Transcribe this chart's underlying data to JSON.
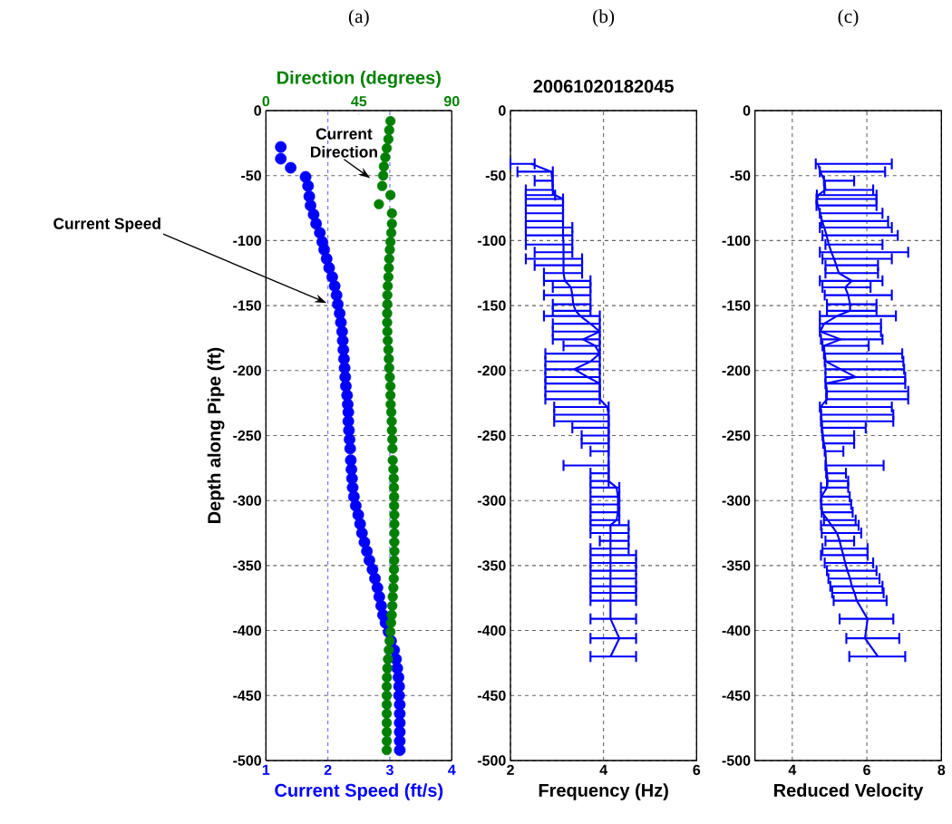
{
  "chart_data": [
    {
      "type": "scatter",
      "title": "(a)",
      "xlabel": "Current Speed (ft/s)",
      "x2label": "Direction (degrees)",
      "ylabel": "Depth along Pipe (ft)",
      "xlim": [
        1,
        4
      ],
      "xticks": [
        1,
        2,
        3,
        4
      ],
      "x2lim": [
        0,
        90
      ],
      "x2ticks": [
        0,
        45,
        90
      ],
      "ylim": [
        -500,
        0
      ],
      "yticks": [
        0,
        -50,
        -100,
        -150,
        -200,
        -250,
        -300,
        -350,
        -400,
        -450,
        -500
      ],
      "grid": true,
      "marker": "circle",
      "annotations": [
        "Current Speed",
        "Current Direction"
      ],
      "series": [
        {
          "color": "#0000ff",
          "x": [
            1.24,
            1.24,
            1.4,
            1.64,
            1.68,
            1.7,
            1.72,
            1.77,
            1.81,
            1.87,
            1.91,
            1.94,
            1.98,
            2.02,
            2.07,
            2.11,
            2.14,
            2.16,
            2.19,
            2.21,
            2.23,
            2.24,
            2.25,
            2.26,
            2.27,
            2.28,
            2.29,
            2.31,
            2.32,
            2.33,
            2.33,
            2.34,
            2.35,
            2.36,
            2.37,
            2.38,
            2.39,
            2.4,
            2.42,
            2.45,
            2.49,
            2.52,
            2.55,
            2.59,
            2.63,
            2.67,
            2.72,
            2.76,
            2.8,
            2.83,
            2.86,
            2.89,
            2.93,
            2.98,
            3.02,
            3.07,
            3.1,
            3.12,
            3.14,
            3.15,
            3.15,
            3.16,
            3.16,
            3.16,
            3.16,
            3.16,
            3.16
          ],
          "values": [
            -28,
            -37,
            -44,
            -51,
            -58,
            -66,
            -73,
            -80,
            -87,
            -94,
            -101,
            -107,
            -114,
            -121,
            -128,
            -135,
            -142,
            -149,
            -156,
            -163,
            -170,
            -177,
            -184,
            -191,
            -198,
            -205,
            -212,
            -219,
            -226,
            -232,
            -239,
            -246,
            -253,
            -260,
            -269,
            -276,
            -283,
            -290,
            -297,
            -304,
            -311,
            -318,
            -325,
            -332,
            -339,
            -346,
            -353,
            -360,
            -367,
            -374,
            -381,
            -388,
            -394,
            -401,
            -408,
            -415,
            -422,
            -429,
            -436,
            -443,
            -450,
            -457,
            -464,
            -471,
            -478,
            -485,
            -492
          ]
        },
        {
          "color": "#008000",
          "axis": "x2",
          "x": [
            60.3,
            59.7,
            59.3,
            58.5,
            57.8,
            57.1,
            56.8,
            56.3,
            60.3,
            54.7,
            61.0,
            61.0,
            60.7,
            60.3,
            60.0,
            59.7,
            59.5,
            59.3,
            59.0,
            58.8,
            58.8,
            58.7,
            58.7,
            58.8,
            59.0,
            59.3,
            59.5,
            59.7,
            60.0,
            60.3,
            60.3,
            60.4,
            60.7,
            60.9,
            61.0,
            61.2,
            61.3,
            61.4,
            61.7,
            61.9,
            62.0,
            62.1,
            62.1,
            62.2,
            62.2,
            62.2,
            62.2,
            62.2,
            62.1,
            62.0,
            61.9,
            61.7,
            61.4,
            61.2,
            60.9,
            60.6,
            60.3,
            59.9,
            59.5,
            59.1,
            58.8,
            58.6,
            58.5,
            58.5,
            58.5,
            58.5,
            58.5,
            58.5,
            58.5,
            58.5
          ],
          "values": [
            -8,
            -15,
            -22,
            -29,
            -36,
            -43,
            -50,
            -58,
            -65,
            -72,
            -79,
            -87,
            -94,
            -101,
            -107,
            -114,
            -121,
            -128,
            -135,
            -142,
            -149,
            -156,
            -163,
            -170,
            -177,
            -184,
            -191,
            -198,
            -205,
            -212,
            -219,
            -226,
            -232,
            -239,
            -246,
            -253,
            -260,
            -269,
            -276,
            -283,
            -290,
            -297,
            -304,
            -311,
            -318,
            -325,
            -332,
            -339,
            -346,
            -353,
            -360,
            -367,
            -374,
            -381,
            -388,
            -394,
            -401,
            -408,
            -415,
            -422,
            -429,
            -436,
            -443,
            -450,
            -457,
            -464,
            -471,
            -478,
            -485,
            -492
          ]
        }
      ]
    },
    {
      "type": "line",
      "title": "(b)",
      "subtitle": "20061020182045",
      "xlabel": "Frequency (Hz)",
      "xlim": [
        2,
        6
      ],
      "xticks": [
        2,
        4,
        6
      ],
      "ylim": [
        -500,
        0
      ],
      "yticks": [
        0,
        -50,
        -100,
        -150,
        -200,
        -250,
        -300,
        -350,
        -400,
        -450,
        -500
      ],
      "grid": true,
      "marker": "none",
      "series": [
        {
          "color": "#0000ff",
          "x": [
            2.45,
            2.88,
            2.9,
            2.91,
            2.96,
            3.13,
            3.13,
            3.13,
            3.13,
            3.13,
            3.13,
            3.14,
            3.14,
            3.14,
            3.14,
            3.14,
            3.17,
            3.3,
            3.33,
            3.35,
            3.4,
            3.5,
            3.72,
            3.92,
            3.56,
            3.82,
            3.92,
            3.72,
            3.37,
            3.66,
            3.92,
            3.92,
            3.92,
            4.08,
            4.11,
            4.11,
            4.11,
            4.11,
            4.11,
            4.11,
            4.11,
            4.11,
            4.11,
            4.28,
            4.31,
            4.31,
            4.31,
            4.28,
            4.15,
            4.15,
            4.15,
            4.15,
            4.15,
            4.15,
            4.15,
            4.15,
            4.15,
            4.15,
            4.15,
            4.15,
            4.34,
            4.15
          ],
          "values": [
            -41,
            -47,
            -54,
            -61,
            -65,
            -68,
            -73,
            -79,
            -85,
            -90,
            -96,
            -103,
            -109,
            -114,
            -119,
            -125,
            -131,
            -136,
            -142,
            -149,
            -154,
            -158,
            -164,
            -170,
            -176,
            -181,
            -187,
            -193,
            -199,
            -205,
            -210,
            -216,
            -222,
            -228,
            -234,
            -239,
            -244,
            -250,
            -256,
            -262,
            -273,
            -279,
            -285,
            -290,
            -297,
            -303,
            -309,
            -315,
            -319,
            -325,
            -331,
            -337,
            -342,
            -348,
            -354,
            -360,
            -366,
            -371,
            -377,
            -391,
            -406,
            -420
          ],
          "xerrors": [
            [
              2.0,
              2.52
            ],
            [
              2.15,
              2.91
            ],
            [
              2.52,
              2.91
            ],
            [
              2.33,
              2.91
            ],
            [
              2.33,
              2.96
            ],
            [
              2.33,
              3.13
            ],
            [
              2.33,
              3.13
            ],
            [
              2.33,
              3.13
            ],
            [
              2.33,
              3.13
            ],
            [
              2.33,
              3.33
            ],
            [
              2.33,
              3.33
            ],
            [
              2.33,
              3.33
            ],
            [
              2.52,
              3.33
            ],
            [
              2.33,
              3.54
            ],
            [
              2.52,
              3.54
            ],
            [
              2.72,
              3.54
            ],
            [
              2.72,
              3.72
            ],
            [
              2.91,
              3.72
            ],
            [
              2.72,
              3.72
            ],
            [
              2.91,
              3.72
            ],
            [
              2.91,
              3.72
            ],
            [
              2.72,
              3.92
            ],
            [
              2.91,
              3.92
            ],
            [
              2.91,
              3.92
            ],
            [
              2.91,
              3.92
            ],
            [
              3.14,
              3.92
            ],
            [
              2.75,
              3.92
            ],
            [
              2.75,
              3.92
            ],
            [
              2.75,
              3.92
            ],
            [
              2.75,
              3.92
            ],
            [
              2.75,
              3.92
            ],
            [
              2.75,
              3.92
            ],
            [
              2.75,
              3.92
            ],
            [
              2.94,
              4.11
            ],
            [
              2.94,
              4.11
            ],
            [
              2.94,
              4.11
            ],
            [
              3.33,
              4.11
            ],
            [
              3.53,
              4.11
            ],
            [
              3.53,
              4.11
            ],
            [
              3.72,
              4.11
            ],
            [
              3.14,
              4.11
            ],
            [
              3.72,
              4.11
            ],
            [
              3.72,
              4.11
            ],
            [
              3.72,
              4.34
            ],
            [
              3.72,
              4.34
            ],
            [
              3.72,
              4.34
            ],
            [
              3.72,
              4.34
            ],
            [
              3.72,
              4.34
            ],
            [
              3.72,
              4.54
            ],
            [
              3.72,
              4.54
            ],
            [
              3.92,
              4.54
            ],
            [
              3.72,
              4.54
            ],
            [
              3.72,
              4.7
            ],
            [
              3.72,
              4.7
            ],
            [
              3.72,
              4.7
            ],
            [
              3.72,
              4.7
            ],
            [
              3.72,
              4.7
            ],
            [
              3.72,
              4.7
            ],
            [
              3.72,
              4.7
            ],
            [
              3.72,
              4.7
            ],
            [
              3.72,
              4.7
            ],
            [
              3.72,
              4.7
            ]
          ]
        }
      ]
    },
    {
      "type": "line",
      "title": "(c)",
      "xlabel": "Reduced Velocity",
      "xlim": [
        3,
        8
      ],
      "xticks": [
        4,
        6,
        8
      ],
      "ylim": [
        -500,
        0
      ],
      "yticks": [
        0,
        -50,
        -100,
        -150,
        -200,
        -250,
        -300,
        -350,
        -400,
        -450,
        -500
      ],
      "grid": true,
      "marker": "none",
      "series": [
        {
          "color": "#0000ff",
          "x": [
            4.69,
            4.75,
            4.87,
            4.89,
            4.7,
            4.66,
            4.68,
            4.75,
            4.8,
            4.86,
            4.92,
            4.98,
            5.05,
            5.12,
            5.18,
            5.25,
            5.6,
            5.42,
            5.5,
            5.55,
            5.55,
            5.2,
            4.85,
            4.75,
            5.3,
            4.85,
            4.87,
            4.9,
            5.3,
            5.7,
            4.9,
            4.93,
            4.93,
            4.76,
            4.78,
            4.79,
            4.8,
            4.82,
            4.85,
            4.89,
            4.91,
            4.93,
            4.95,
            4.93,
            4.78,
            4.78,
            4.8,
            4.95,
            5.05,
            5.2,
            5.27,
            5.32,
            5.37,
            5.42,
            5.48,
            5.55,
            5.6,
            5.67,
            5.73,
            6.02,
            5.95,
            6.3
          ],
          "values": [
            -41,
            -47,
            -54,
            -61,
            -65,
            -68,
            -73,
            -79,
            -85,
            -90,
            -96,
            -103,
            -109,
            -114,
            -119,
            -125,
            -131,
            -136,
            -142,
            -149,
            -154,
            -158,
            -164,
            -170,
            -176,
            -181,
            -187,
            -193,
            -199,
            -205,
            -210,
            -216,
            -222,
            -228,
            -234,
            -239,
            -244,
            -250,
            -256,
            -262,
            -273,
            -279,
            -285,
            -290,
            -297,
            -303,
            -309,
            -315,
            -319,
            -325,
            -331,
            -337,
            -342,
            -348,
            -354,
            -360,
            -366,
            -371,
            -377,
            -391,
            -406,
            -420
          ],
          "xerrors": [
            [
              4.63,
              6.67
            ],
            [
              4.74,
              6.49
            ],
            [
              4.85,
              5.66
            ],
            [
              4.86,
              6.17
            ],
            [
              4.66,
              6.26
            ],
            [
              4.65,
              6.26
            ],
            [
              4.65,
              6.26
            ],
            [
              4.74,
              6.42
            ],
            [
              4.78,
              6.57
            ],
            [
              4.74,
              6.67
            ],
            [
              4.81,
              6.83
            ],
            [
              4.89,
              6.42
            ],
            [
              4.74,
              7.11
            ],
            [
              4.81,
              6.67
            ],
            [
              4.89,
              6.3
            ],
            [
              4.89,
              6.3
            ],
            [
              4.74,
              6.42
            ],
            [
              4.81,
              6.1
            ],
            [
              4.87,
              6.67
            ],
            [
              4.93,
              6.26
            ],
            [
              4.93,
              6.26
            ],
            [
              4.74,
              6.78
            ],
            [
              4.74,
              6.38
            ],
            [
              4.74,
              6.38
            ],
            [
              4.77,
              6.42
            ],
            [
              4.81,
              6.05
            ],
            [
              4.85,
              6.95
            ],
            [
              4.87,
              6.98
            ],
            [
              4.89,
              7.0
            ],
            [
              4.89,
              7.03
            ],
            [
              4.89,
              7.03
            ],
            [
              4.91,
              7.11
            ],
            [
              4.91,
              7.11
            ],
            [
              4.74,
              6.67
            ],
            [
              4.77,
              6.71
            ],
            [
              4.77,
              6.71
            ],
            [
              4.79,
              5.97
            ],
            [
              4.81,
              5.66
            ],
            [
              4.83,
              5.66
            ],
            [
              4.87,
              5.37
            ],
            [
              4.89,
              6.45
            ],
            [
              4.91,
              5.44
            ],
            [
              4.93,
              5.5
            ],
            [
              4.77,
              5.5
            ],
            [
              4.77,
              5.54
            ],
            [
              4.77,
              5.58
            ],
            [
              4.79,
              5.62
            ],
            [
              4.85,
              5.7
            ],
            [
              4.77,
              5.78
            ],
            [
              4.79,
              5.85
            ],
            [
              4.89,
              5.66
            ],
            [
              4.81,
              6.02
            ],
            [
              4.77,
              6.02
            ],
            [
              4.87,
              6.17
            ],
            [
              4.93,
              6.26
            ],
            [
              4.97,
              6.34
            ],
            [
              5.02,
              6.42
            ],
            [
              5.07,
              6.45
            ],
            [
              5.11,
              6.53
            ],
            [
              5.27,
              6.71
            ],
            [
              5.45,
              6.87
            ],
            [
              5.53,
              7.03
            ]
          ]
        }
      ]
    }
  ]
}
